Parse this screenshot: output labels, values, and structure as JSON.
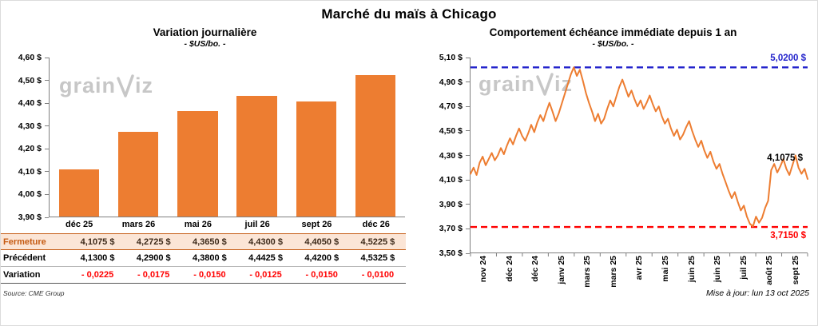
{
  "page": {
    "title": "Marché du maïs à Chicago",
    "source_note": "Source: CME Group",
    "update_note": "Mise à jour: lun 13 oct 2025"
  },
  "watermark": {
    "text_left": "grain",
    "text_right": "iz"
  },
  "left_panel": {
    "title": "Variation journalière",
    "subtitle": "- $US/bo. -"
  },
  "right_panel": {
    "title": "Comportement échéance immédiate depuis 1 an",
    "subtitle": "- $US/bo. -"
  },
  "table": {
    "rows": [
      {
        "label": "Fermeture",
        "values": [
          "4,1075 $",
          "4,2725 $",
          "4,3650 $",
          "4,4300 $",
          "4,4050 $",
          "4,5225 $"
        ]
      },
      {
        "label": "Précédent",
        "values": [
          "4,1300 $",
          "4,2900 $",
          "4,3800 $",
          "4,4425 $",
          "4,4200 $",
          "4,5325 $"
        ]
      },
      {
        "label": "Variation",
        "values": [
          "- 0,0225",
          "- 0,0175",
          "- 0,0150",
          "- 0,0125",
          "- 0,0150",
          "- 0,0100"
        ]
      }
    ]
  },
  "chart_data": [
    {
      "type": "bar",
      "title": "Variation journalière",
      "subtitle": "- $US/bo. -",
      "categories": [
        "déc 25",
        "mars 26",
        "mai 26",
        "juil 26",
        "sept 26",
        "déc 26"
      ],
      "values": [
        4.1075,
        4.2725,
        4.365,
        4.43,
        4.405,
        4.5225
      ],
      "ylim": [
        3.9,
        4.6
      ],
      "ytick_labels": [
        "4,60 $",
        "4,50 $",
        "4,40 $",
        "4,30 $",
        "4,20 $",
        "4,10 $",
        "4,00 $",
        "3,90 $"
      ],
      "bar_color": "#ED7D31",
      "xlabel": "",
      "ylabel": "",
      "grid": false,
      "legend": false
    },
    {
      "type": "line",
      "title": "Comportement échéance immédiate depuis 1 an",
      "subtitle": "- $US/bo. -",
      "x_tick_labels": [
        "nov 24",
        "déc 24",
        "déc 24",
        "janv 25",
        "mars 25",
        "mars 25",
        "avr 25",
        "mai 25",
        "juin 25",
        "juin 25",
        "juil 25",
        "août 25",
        "sept 25"
      ],
      "values": [
        4.15,
        4.2,
        4.14,
        4.24,
        4.29,
        4.22,
        4.27,
        4.32,
        4.26,
        4.3,
        4.36,
        4.31,
        4.38,
        4.44,
        4.39,
        4.46,
        4.52,
        4.46,
        4.42,
        4.48,
        4.55,
        4.49,
        4.57,
        4.63,
        4.58,
        4.66,
        4.73,
        4.66,
        4.58,
        4.64,
        4.72,
        4.8,
        4.88,
        4.96,
        5.02,
        4.95,
        5.0,
        4.91,
        4.81,
        4.73,
        4.66,
        4.58,
        4.64,
        4.56,
        4.6,
        4.68,
        4.75,
        4.7,
        4.78,
        4.86,
        4.92,
        4.85,
        4.78,
        4.83,
        4.76,
        4.7,
        4.75,
        4.68,
        4.73,
        4.79,
        4.72,
        4.66,
        4.7,
        4.62,
        4.56,
        4.6,
        4.52,
        4.46,
        4.51,
        4.43,
        4.47,
        4.53,
        4.58,
        4.5,
        4.43,
        4.37,
        4.42,
        4.34,
        4.28,
        4.33,
        4.25,
        4.19,
        4.23,
        4.15,
        4.08,
        4.01,
        3.95,
        4.0,
        3.92,
        3.85,
        3.89,
        3.8,
        3.74,
        3.72,
        3.8,
        3.75,
        3.79,
        3.87,
        3.93,
        4.18,
        4.23,
        4.16,
        4.21,
        4.27,
        4.19,
        4.14,
        4.22,
        4.3,
        4.2,
        4.15,
        4.19,
        4.1075
      ],
      "ylim": [
        3.5,
        5.1
      ],
      "ytick_labels": [
        "5,10 $",
        "4,90 $",
        "4,70 $",
        "4,50 $",
        "4,30 $",
        "4,10 $",
        "3,90 $",
        "3,70 $",
        "3,50 $"
      ],
      "line_color": "#ED7D31",
      "high_line": {
        "value": 5.02,
        "label": "5,0200 $",
        "color": "#2323CC"
      },
      "low_line": {
        "value": 3.715,
        "label": "3,7150 $",
        "color": "#FF0000"
      },
      "last_value": 4.1075,
      "last_label": "4,1075 $",
      "xlabel": "",
      "ylabel": "",
      "grid": false,
      "legend": false
    }
  ]
}
